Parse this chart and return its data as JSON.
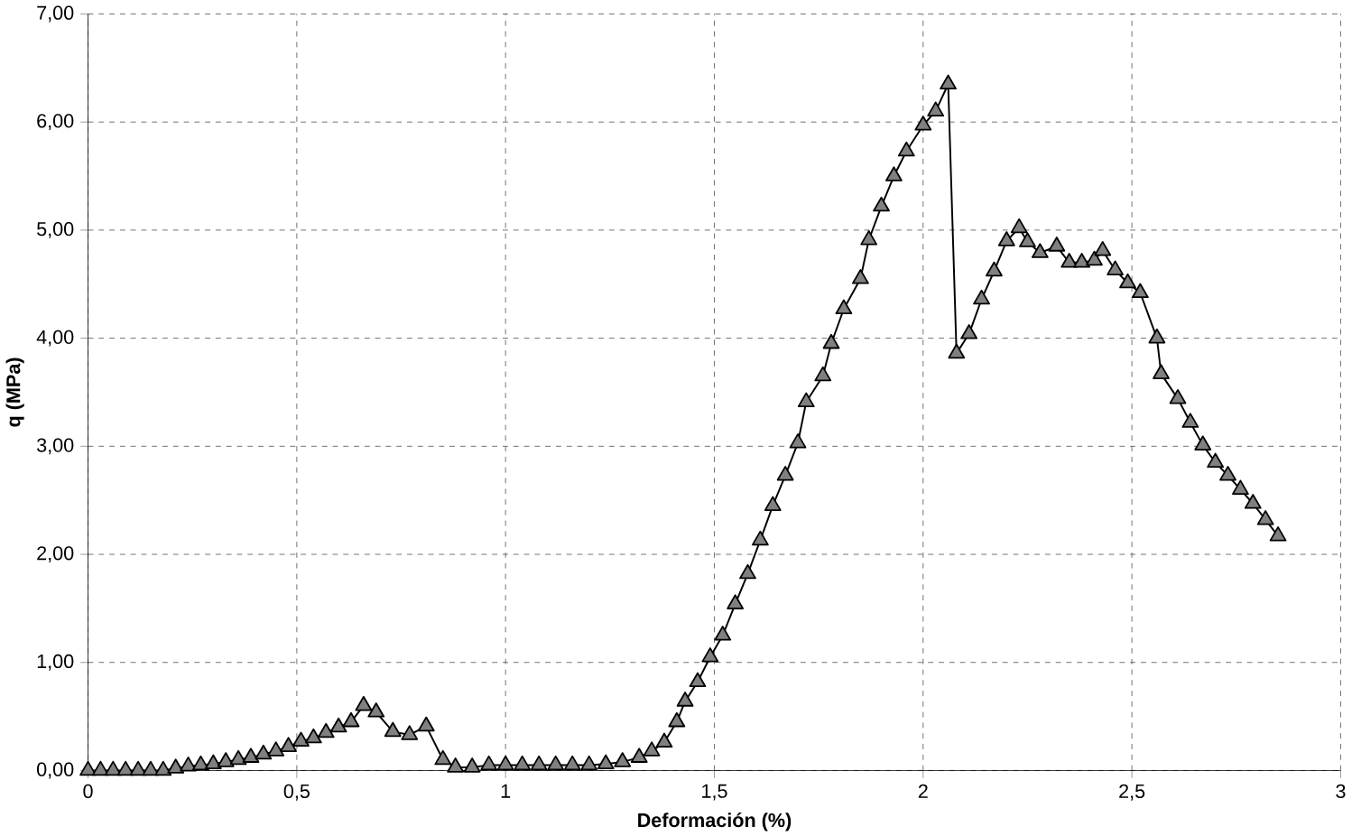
{
  "chart_data": {
    "type": "line",
    "xlabel": "Deformación (%)",
    "ylabel": "q (MPa)",
    "xlim": [
      0,
      3
    ],
    "ylim": [
      0,
      7
    ],
    "xticks": [
      0,
      {
        "value": 0.5,
        "label": "0,5"
      },
      1,
      {
        "value": 1.5,
        "label": "1,5"
      },
      2,
      {
        "value": 2.5,
        "label": "2,5"
      },
      3
    ],
    "yticks": [
      {
        "value": 0,
        "label": "0,00"
      },
      {
        "value": 1,
        "label": "1,00"
      },
      {
        "value": 2,
        "label": "2,00"
      },
      {
        "value": 3,
        "label": "3,00"
      },
      {
        "value": 4,
        "label": "4,00"
      },
      {
        "value": 5,
        "label": "5,00"
      },
      {
        "value": 6,
        "label": "6,00"
      },
      {
        "value": 7,
        "label": "7,00"
      }
    ],
    "grid": true,
    "marker": "triangle",
    "series": [
      {
        "color": "#000000",
        "x": [
          0,
          0.03,
          0.06,
          0.09,
          0.12,
          0.15,
          0.18,
          0.21,
          0.24,
          0.27,
          0.3,
          0.33,
          0.36,
          0.39,
          0.42,
          0.45,
          0.48,
          0.51,
          0.54,
          0.57,
          0.6,
          0.63,
          0.66,
          0.69,
          0.73,
          0.77,
          0.81,
          0.85,
          0.88,
          0.92,
          0.96,
          1.0,
          1.04,
          1.08,
          1.12,
          1.16,
          1.2,
          1.24,
          1.28,
          1.32,
          1.35,
          1.38,
          1.41,
          1.43,
          1.46,
          1.49,
          1.52,
          1.55,
          1.58,
          1.61,
          1.64,
          1.67,
          1.7,
          1.72,
          1.76,
          1.78,
          1.81,
          1.85,
          1.87,
          1.9,
          1.93,
          1.96,
          2.0,
          2.03,
          2.06,
          2.08,
          2.11,
          2.14,
          2.17,
          2.2,
          2.23,
          2.25,
          2.28,
          2.32,
          2.35,
          2.38,
          2.41,
          2.43,
          2.46,
          2.49,
          2.52,
          2.56,
          2.57,
          2.61,
          2.64,
          2.67,
          2.7,
          2.73,
          2.76,
          2.79,
          2.82,
          2.85
        ],
        "values": [
          0,
          0,
          0,
          0,
          0,
          0,
          0,
          0.02,
          0.04,
          0.05,
          0.06,
          0.08,
          0.1,
          0.12,
          0.15,
          0.18,
          0.22,
          0.27,
          0.3,
          0.35,
          0.4,
          0.45,
          0.6,
          0.54,
          0.36,
          0.33,
          0.41,
          0.1,
          0.03,
          0.03,
          0.05,
          0.05,
          0.05,
          0.05,
          0.05,
          0.05,
          0.05,
          0.06,
          0.08,
          0.12,
          0.18,
          0.26,
          0.45,
          0.64,
          0.82,
          1.05,
          1.25,
          1.54,
          1.82,
          2.13,
          2.45,
          2.73,
          3.03,
          3.41,
          3.65,
          3.95,
          4.27,
          4.55,
          4.91,
          5.22,
          5.5,
          5.73,
          5.97,
          6.1,
          6.35,
          3.86,
          4.04,
          4.36,
          4.62,
          4.9,
          5.02,
          4.89,
          4.79,
          4.85,
          4.7,
          4.7,
          4.72,
          4.81,
          4.63,
          4.51,
          4.42,
          4.0,
          3.67,
          3.44,
          3.22,
          3.01,
          2.85,
          2.73,
          2.6,
          2.47,
          2.32,
          2.17
        ]
      }
    ]
  }
}
